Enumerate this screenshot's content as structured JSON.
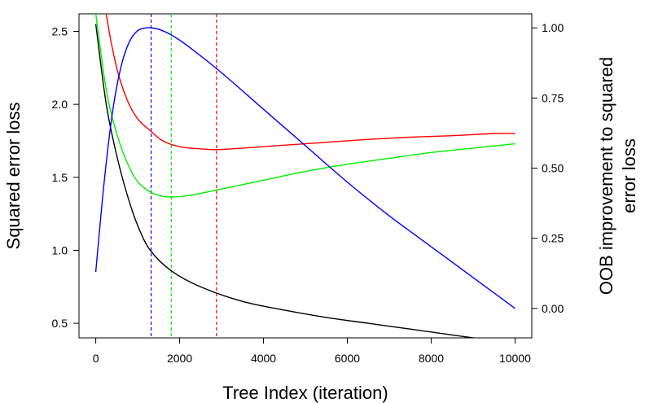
{
  "chart_data": {
    "type": "line",
    "title": "",
    "xlabel": "Tree Index (iteration)",
    "ylabel_left": "Squared error loss",
    "ylabel_right_lines": [
      "OOB improvement to squared",
      "error loss"
    ],
    "xlim": [
      -400,
      10400
    ],
    "ylim_left": [
      0.4,
      2.62
    ],
    "ylim_right": [
      -0.105,
      1.05
    ],
    "x_ticks": [
      0,
      2000,
      4000,
      6000,
      8000,
      10000
    ],
    "x_tick_labels": [
      "0",
      "2000",
      "4000",
      "6000",
      "8000",
      "10000"
    ],
    "y_left_ticks": [
      0.5,
      1.0,
      1.5,
      2.0,
      2.5
    ],
    "y_left_tick_labels": [
      "0.5",
      "1.0",
      "1.5",
      "2.0",
      "2.5"
    ],
    "y_right_ticks": [
      0.0,
      0.25,
      0.5,
      0.75,
      1.0
    ],
    "y_right_tick_labels": [
      "0.00",
      "0.25",
      "0.50",
      "0.75",
      "1.00"
    ],
    "grid": false,
    "legend": "none",
    "series": [
      {
        "color": "#000000",
        "axis": "left",
        "x": [
          0,
          250,
          500,
          750,
          1000,
          1300,
          1800,
          2500,
          3500,
          4500,
          5500,
          6500,
          7500,
          8500,
          9500,
          10000
        ],
        "y": [
          2.55,
          2.0,
          1.65,
          1.38,
          1.17,
          1.0,
          0.86,
          0.75,
          0.65,
          0.59,
          0.54,
          0.5,
          0.46,
          0.42,
          0.38,
          0.36
        ]
      },
      {
        "color": "#ff0000",
        "axis": "left",
        "x": [
          0,
          250,
          500,
          750,
          1000,
          1300,
          1600,
          2000,
          2500,
          2880,
          3500,
          4500,
          5500,
          6500,
          7500,
          8500,
          9500,
          10000
        ],
        "y": [
          3.2,
          2.62,
          2.25,
          2.03,
          1.9,
          1.82,
          1.75,
          1.71,
          1.695,
          1.69,
          1.7,
          1.72,
          1.74,
          1.76,
          1.775,
          1.785,
          1.8,
          1.8
        ]
      },
      {
        "color": "#00ee00",
        "axis": "left",
        "x": [
          0,
          250,
          500,
          750,
          1000,
          1300,
          1600,
          1800,
          2100,
          2500,
          3000,
          4000,
          5000,
          6000,
          7000,
          8000,
          9000,
          10000
        ],
        "y": [
          2.62,
          2.1,
          1.8,
          1.6,
          1.47,
          1.4,
          1.37,
          1.365,
          1.37,
          1.39,
          1.42,
          1.48,
          1.54,
          1.59,
          1.63,
          1.67,
          1.7,
          1.73
        ]
      },
      {
        "color": "#0000ff",
        "axis": "right",
        "x": [
          0,
          200,
          400,
          600,
          800,
          1000,
          1200,
          1320,
          1500,
          1800,
          2200,
          3000,
          4000,
          5000,
          6000,
          7000,
          8000,
          9000,
          10000
        ],
        "y": [
          0.13,
          0.45,
          0.7,
          0.86,
          0.95,
          0.99,
          1.0,
          1.0,
          0.995,
          0.975,
          0.935,
          0.84,
          0.71,
          0.58,
          0.45,
          0.33,
          0.22,
          0.11,
          0.0
        ]
      }
    ],
    "vlines": [
      {
        "x": 1320,
        "color": "#0000ff"
      },
      {
        "x": 1800,
        "color": "#00ee00"
      },
      {
        "x": 2880,
        "color": "#ff0000"
      }
    ]
  }
}
